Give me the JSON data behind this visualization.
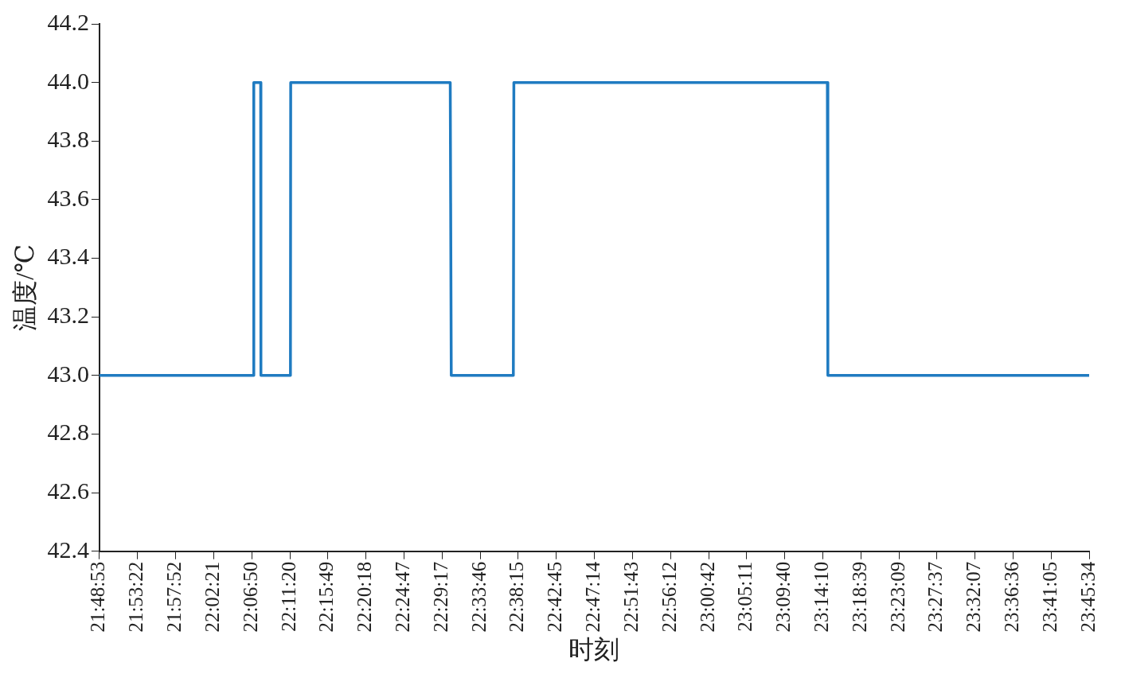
{
  "chart_data": {
    "type": "line",
    "xlabel": "时刻",
    "ylabel": "温度/℃",
    "x": [
      21.8147,
      22.1175,
      22.118,
      22.1315,
      22.132,
      22.19,
      22.1905,
      22.504,
      22.506,
      22.628,
      22.629,
      23.245,
      23.246,
      23.7594
    ],
    "series": [
      {
        "color": "#1f7bc1",
        "values": [
          43,
          43,
          44,
          44,
          43,
          43,
          44,
          44,
          43,
          43,
          44,
          44,
          43,
          43
        ]
      }
    ],
    "xlim": [
      21.8147,
      23.7594
    ],
    "xticks": [
      {
        "value": 21.8147,
        "label": "21:48:53"
      },
      {
        "value": 21.8894,
        "label": "21:53:22"
      },
      {
        "value": 21.9644,
        "label": "21:57:52"
      },
      {
        "value": 22.0392,
        "label": "22:02:21"
      },
      {
        "value": 22.1139,
        "label": "22:06:50"
      },
      {
        "value": 22.1889,
        "label": "22:11:20"
      },
      {
        "value": 22.2636,
        "label": "22:15:49"
      },
      {
        "value": 22.3383,
        "label": "22:20:18"
      },
      {
        "value": 22.4131,
        "label": "22:24:47"
      },
      {
        "value": 22.4881,
        "label": "22:29:17"
      },
      {
        "value": 22.5628,
        "label": "22:33:46"
      },
      {
        "value": 22.6375,
        "label": "22:38:15"
      },
      {
        "value": 22.7125,
        "label": "22:42:45"
      },
      {
        "value": 22.7872,
        "label": "22:47:14"
      },
      {
        "value": 22.8619,
        "label": "22:51:43"
      },
      {
        "value": 22.9367,
        "label": "22:56:12"
      },
      {
        "value": 23.0117,
        "label": "23:00:42"
      },
      {
        "value": 23.0864,
        "label": "23:05:11"
      },
      {
        "value": 23.1611,
        "label": "23:09:40"
      },
      {
        "value": 23.2361,
        "label": "23:14:10"
      },
      {
        "value": 23.3108,
        "label": "23:18:39"
      },
      {
        "value": 23.3858,
        "label": "23:23:09"
      },
      {
        "value": 23.4603,
        "label": "23:27:37"
      },
      {
        "value": 23.5353,
        "label": "23:32:07"
      },
      {
        "value": 23.61,
        "label": "23:36:36"
      },
      {
        "value": 23.6847,
        "label": "23:41:05"
      },
      {
        "value": 23.7594,
        "label": "23:45:34"
      }
    ],
    "ylim": [
      42.4,
      44.2
    ],
    "yticks": [
      {
        "value": 42.4,
        "label": "42.4"
      },
      {
        "value": 42.6,
        "label": "42.6"
      },
      {
        "value": 42.8,
        "label": "42.8"
      },
      {
        "value": 43,
        "label": "43.0"
      },
      {
        "value": 43.2,
        "label": "43.2"
      },
      {
        "value": 43.4,
        "label": "43.4"
      },
      {
        "value": 43.6,
        "label": "43.6"
      },
      {
        "value": 43.8,
        "label": "43.8"
      },
      {
        "value": 44,
        "label": "44.0"
      },
      {
        "value": 44.2,
        "label": "44.2"
      }
    ]
  }
}
